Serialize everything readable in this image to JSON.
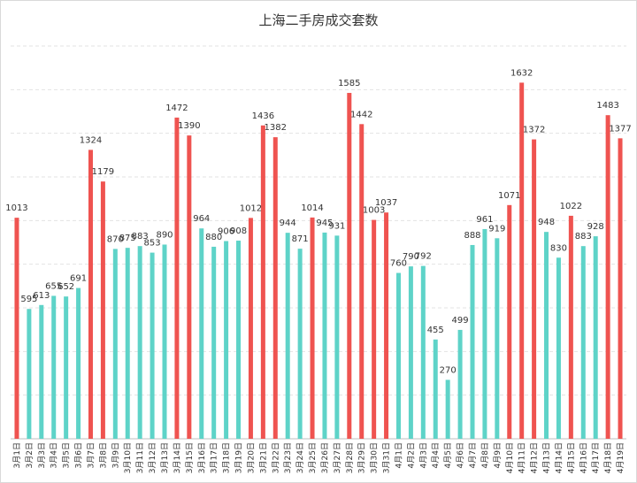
{
  "chart_data": {
    "type": "bar",
    "title": "上海二手房成交套数",
    "xlabel": "",
    "ylabel": "",
    "ylim": [
      0,
      1800
    ],
    "grid": true,
    "legend": "none",
    "colors": {
      "high": "#ef5350",
      "normal": "#5ed3c8"
    },
    "categories": [
      "3月1日",
      "3月2日",
      "3月3日",
      "3月4日",
      "3月5日",
      "3月6日",
      "3月7日",
      "3月8日",
      "3月9日",
      "3月10日",
      "3月11日",
      "3月12日",
      "3月13日",
      "3月14日",
      "3月15日",
      "3月16日",
      "3月17日",
      "3月18日",
      "3月19日",
      "3月20日",
      "3月21日",
      "3月22日",
      "3月23日",
      "3月24日",
      "3月25日",
      "3月26日",
      "3月27日",
      "3月28日",
      "3月29日",
      "3月30日",
      "3月31日",
      "4月1日",
      "4月2日",
      "4月3日",
      "4月4日",
      "4月5日",
      "4月6日",
      "4月7日",
      "4月8日",
      "4月9日",
      "4月10日",
      "4月11日",
      "4月12日",
      "4月13日",
      "4月14日",
      "4月15日",
      "4月16日",
      "4月17日",
      "4月18日",
      "4月19日"
    ],
    "values": [
      1013,
      595,
      613,
      655,
      652,
      691,
      1324,
      1179,
      870,
      875,
      883,
      853,
      890,
      1472,
      1390,
      964,
      880,
      906,
      908,
      1012,
      1436,
      1382,
      944,
      871,
      1014,
      945,
      931,
      1585,
      1442,
      1003,
      1037,
      760,
      790,
      792,
      455,
      270,
      499,
      888,
      961,
      919,
      1071,
      1632,
      1372,
      948,
      830,
      1022,
      883,
      928,
      1483,
      1377
    ],
    "highlight": [
      true,
      false,
      false,
      false,
      false,
      false,
      true,
      true,
      false,
      false,
      false,
      false,
      false,
      true,
      true,
      false,
      false,
      false,
      false,
      true,
      true,
      true,
      false,
      false,
      true,
      false,
      false,
      true,
      true,
      true,
      true,
      false,
      false,
      false,
      false,
      false,
      false,
      false,
      false,
      false,
      true,
      true,
      true,
      false,
      false,
      true,
      false,
      false,
      true,
      true
    ]
  }
}
